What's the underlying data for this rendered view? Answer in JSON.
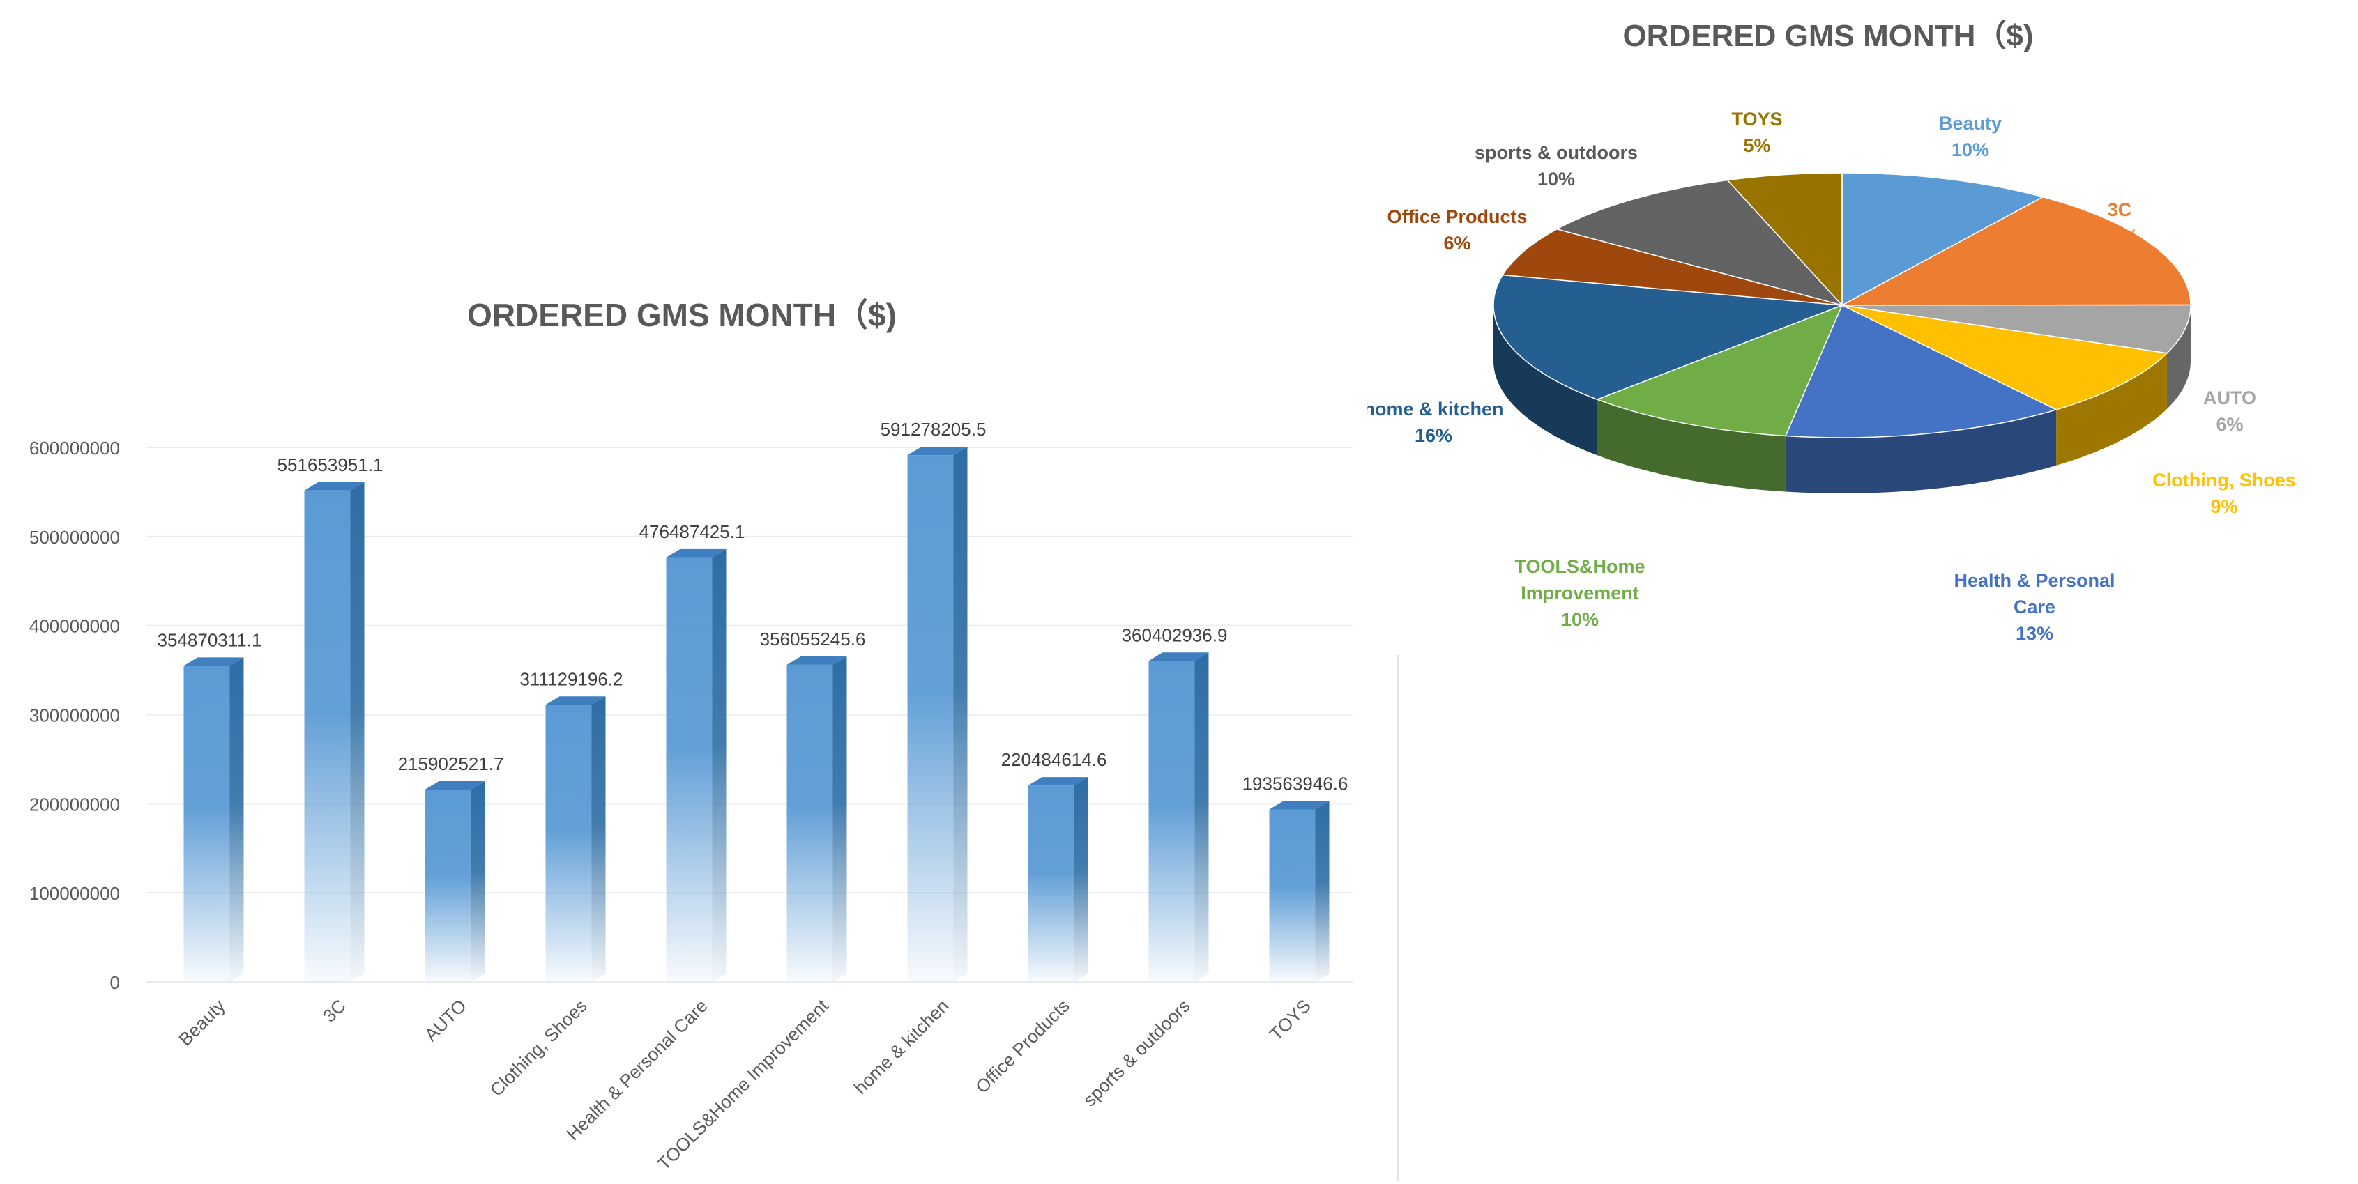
{
  "chart_data": [
    {
      "type": "bar",
      "title": "ORDERED GMS MONTH（$)",
      "categories": [
        "Beauty",
        "3C",
        "AUTO",
        "Clothing, Shoes",
        "Health & Personal Care",
        "TOOLS&Home Improvement",
        "home & kitchen",
        "Office Products",
        "sports & outdoors",
        "TOYS"
      ],
      "values": [
        354870311.1,
        551653951.1,
        215902521.7,
        311129196.2,
        476487425.1,
        356055245.6,
        591278205.5,
        220484614.6,
        360402936.9,
        193563946.6
      ],
      "data_labels": [
        "354870311.1",
        "551653951.1",
        "215902521.7",
        "311129196.2",
        "476487425.1",
        "356055245.6",
        "591278205.5",
        "220484614.6",
        "360402936.9",
        "193563946.6"
      ],
      "y_ticks": [
        "0",
        "100000000",
        "200000000",
        "300000000",
        "400000000",
        "500000000",
        "600000000"
      ],
      "ylim": [
        0,
        600000000
      ],
      "grid": true,
      "colors": {
        "bar": "#5b9bd5",
        "bar_side": "#2e6da4",
        "bar_top": "#3f7fbf",
        "grid": "#ececec",
        "axis_text": "#595959"
      }
    },
    {
      "type": "pie",
      "title": "ORDERED GMS MONTH（$)",
      "labels": [
        "Beauty",
        "3C",
        "AUTO",
        "Clothing, Shoes",
        "Health & Personal Care",
        "TOOLS&Home Improvement",
        "home & kitchen",
        "Office Products",
        "sports & outdoors",
        "TOYS"
      ],
      "values": [
        354870311.1,
        551653951.1,
        215902521.7,
        311129196.2,
        476487425.1,
        356055245.6,
        591278205.5,
        220484614.6,
        360402936.9,
        193563946.6
      ],
      "percent_labels": [
        "10%",
        "15%",
        "6%",
        "9%",
        "13%",
        "10%",
        "16%",
        "6%",
        "10%",
        "5%"
      ],
      "colors": [
        "#5b9bd5",
        "#ed7d31",
        "#a5a5a5",
        "#ffc000",
        "#4472c4",
        "#70ad47",
        "#255e91",
        "#9e480e",
        "#636363",
        "#997300"
      ],
      "label_colors": [
        "#5b9bd5",
        "#ed7d31",
        "#a5a5a5",
        "#ffc000",
        "#4472c4",
        "#70ad47",
        "#255e91",
        "#9e480e",
        "#595959",
        "#997300"
      ]
    }
  ]
}
